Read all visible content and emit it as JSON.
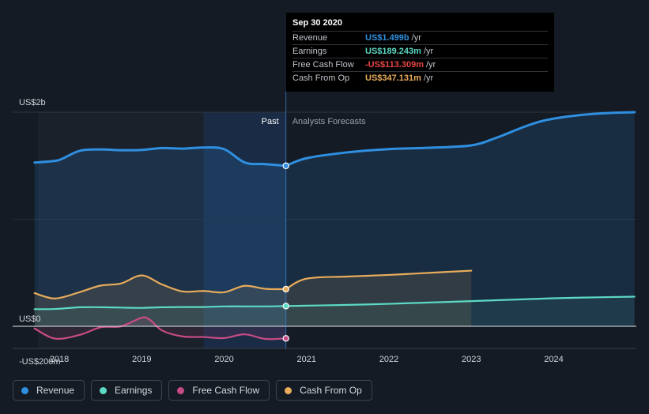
{
  "chart_data": {
    "type": "area",
    "title": "",
    "xlabel": "",
    "ylabel": "",
    "ylim": [
      -200,
      2000
    ],
    "xlim": [
      2017.7,
      2024.98
    ],
    "y_labels": [
      {
        "value": 2000,
        "label": "US$2b"
      },
      {
        "value": 0,
        "label": "US$0"
      },
      {
        "value": -200,
        "label": "-US$200m"
      }
    ],
    "x_ticks": [
      {
        "value": 2018,
        "label": "2018"
      },
      {
        "value": 2019,
        "label": "2019"
      },
      {
        "value": 2020,
        "label": "2020"
      },
      {
        "value": 2021,
        "label": "2021"
      },
      {
        "value": 2022,
        "label": "2022"
      },
      {
        "value": 2023,
        "label": "2023"
      },
      {
        "value": 2024,
        "label": "2024"
      }
    ],
    "divider_x": 2020.75,
    "shade_start_x": 2019.75,
    "region_labels": {
      "past": "Past",
      "forecast": "Analysts Forecasts"
    },
    "series": [
      {
        "key": "revenue",
        "name": "Revenue",
        "color": "#2f8fe0",
        "past": [
          [
            2017.7,
            1530
          ],
          [
            2017.95,
            1545
          ],
          [
            2018.05,
            1570
          ],
          [
            2018.25,
            1640
          ],
          [
            2018.5,
            1652
          ],
          [
            2018.75,
            1645
          ],
          [
            2019.0,
            1648
          ],
          [
            2019.25,
            1665
          ],
          [
            2019.5,
            1660
          ],
          [
            2019.75,
            1670
          ],
          [
            2020.0,
            1655
          ],
          [
            2020.25,
            1530
          ],
          [
            2020.5,
            1515
          ],
          [
            2020.75,
            1499
          ]
        ],
        "forecast": [
          [
            2020.75,
            1499
          ],
          [
            2021.0,
            1570
          ],
          [
            2021.5,
            1625
          ],
          [
            2022.0,
            1655
          ],
          [
            2022.5,
            1668
          ],
          [
            2023.0,
            1690
          ],
          [
            2023.3,
            1760
          ],
          [
            2023.7,
            1880
          ],
          [
            2024.0,
            1940
          ],
          [
            2024.5,
            1985
          ],
          [
            2024.98,
            2000
          ]
        ]
      },
      {
        "key": "earnings",
        "name": "Earnings",
        "color": "#5cd9c4",
        "past": [
          [
            2017.7,
            160
          ],
          [
            2017.95,
            162
          ],
          [
            2018.25,
            178
          ],
          [
            2018.5,
            178
          ],
          [
            2018.75,
            175
          ],
          [
            2019.0,
            172
          ],
          [
            2019.25,
            178
          ],
          [
            2019.5,
            180
          ],
          [
            2019.75,
            180
          ],
          [
            2020.0,
            186
          ],
          [
            2020.25,
            186
          ],
          [
            2020.5,
            186
          ],
          [
            2020.75,
            189
          ]
        ],
        "forecast": [
          [
            2020.75,
            189
          ],
          [
            2021.5,
            200
          ],
          [
            2022.0,
            210
          ],
          [
            2023.0,
            235
          ],
          [
            2024.0,
            262
          ],
          [
            2024.98,
            277
          ]
        ]
      },
      {
        "key": "fcf",
        "name": "Free Cash Flow",
        "color": "#c84b86",
        "past": [
          [
            2017.7,
            -20
          ],
          [
            2017.95,
            -115
          ],
          [
            2018.25,
            -80
          ],
          [
            2018.5,
            -10
          ],
          [
            2018.75,
            0
          ],
          [
            2019.0,
            80
          ],
          [
            2019.1,
            60
          ],
          [
            2019.25,
            -40
          ],
          [
            2019.5,
            -95
          ],
          [
            2019.75,
            -100
          ],
          [
            2020.0,
            -110
          ],
          [
            2020.25,
            -75
          ],
          [
            2020.5,
            -118
          ],
          [
            2020.75,
            -113
          ]
        ],
        "forecast": []
      },
      {
        "key": "cfo",
        "name": "Cash From Op",
        "color": "#e8ac5b",
        "past": [
          [
            2017.7,
            310
          ],
          [
            2017.95,
            260
          ],
          [
            2018.25,
            320
          ],
          [
            2018.5,
            380
          ],
          [
            2018.75,
            400
          ],
          [
            2019.0,
            475
          ],
          [
            2019.25,
            390
          ],
          [
            2019.5,
            325
          ],
          [
            2019.75,
            330
          ],
          [
            2020.0,
            318
          ],
          [
            2020.25,
            378
          ],
          [
            2020.5,
            350
          ],
          [
            2020.75,
            347
          ]
        ],
        "forecast": [
          [
            2020.75,
            347
          ],
          [
            2021.0,
            445
          ],
          [
            2021.5,
            465
          ],
          [
            2022.0,
            480
          ],
          [
            2022.5,
            500
          ],
          [
            2023.0,
            520
          ]
        ]
      }
    ],
    "tooltip": {
      "date": "Sep 30 2020",
      "rows": [
        {
          "label": "Revenue",
          "value": "US$1.499b",
          "unit": "/yr",
          "color": "#2f8fe0"
        },
        {
          "label": "Earnings",
          "value": "US$189.243m",
          "unit": "/yr",
          "color": "#5cd9c4"
        },
        {
          "label": "Free Cash Flow",
          "value": "-US$113.309m",
          "unit": "/yr",
          "color": "#e64545"
        },
        {
          "label": "Cash From Op",
          "value": "US$347.131m",
          "unit": "/yr",
          "color": "#e8ac5b"
        }
      ]
    }
  },
  "legend": [
    {
      "label": "Revenue",
      "color": "#2f8fe0"
    },
    {
      "label": "Earnings",
      "color": "#5cd9c4"
    },
    {
      "label": "Free Cash Flow",
      "color": "#c84b86"
    },
    {
      "label": "Cash From Op",
      "color": "#e8ac5b"
    }
  ]
}
